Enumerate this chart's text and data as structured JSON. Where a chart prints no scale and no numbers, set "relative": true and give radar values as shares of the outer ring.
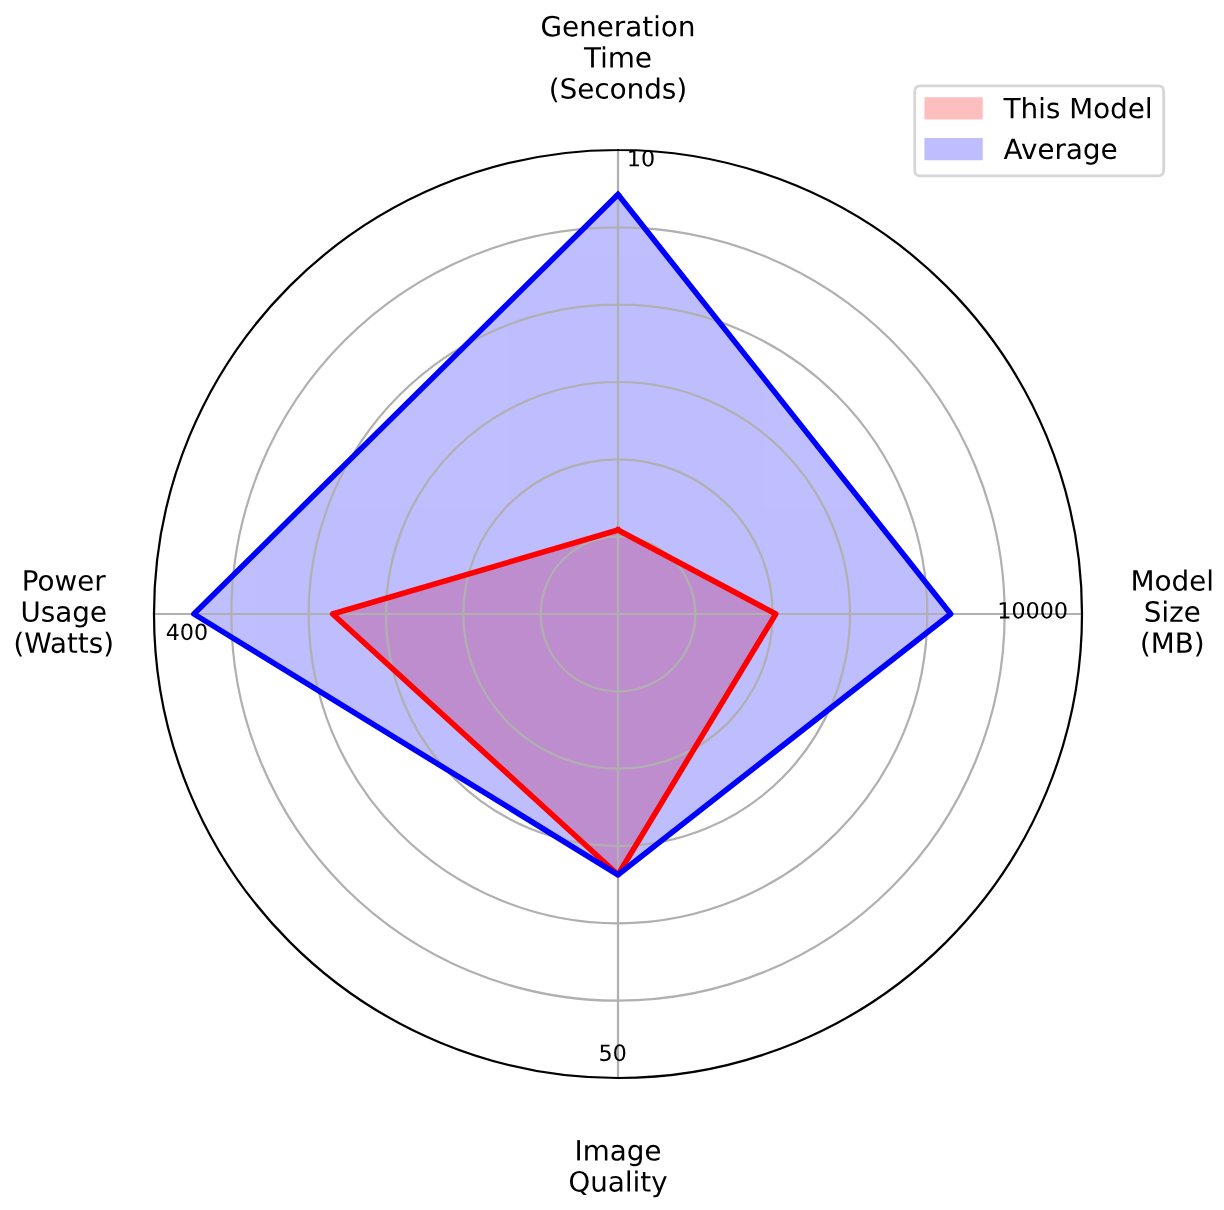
{
  "chart_data": {
    "type": "radar",
    "relative": true,
    "categories": [
      "Generation\nTime\n(Seconds)",
      "Model\nSize\n(MB)",
      "Image\nQuality",
      "Power\nUsage\n(Watts)"
    ],
    "series": [
      {
        "name": "This Model",
        "color": "#ff0000",
        "values": [
          0.181,
          0.34,
          0.562,
          0.615
        ]
      },
      {
        "name": "Average",
        "color": "#0000ff",
        "values": [
          0.904,
          0.717,
          0.562,
          0.914
        ]
      }
    ],
    "annotations": [
      "10",
      "10000",
      "50",
      "400"
    ],
    "grid": true,
    "legend": "top right"
  }
}
